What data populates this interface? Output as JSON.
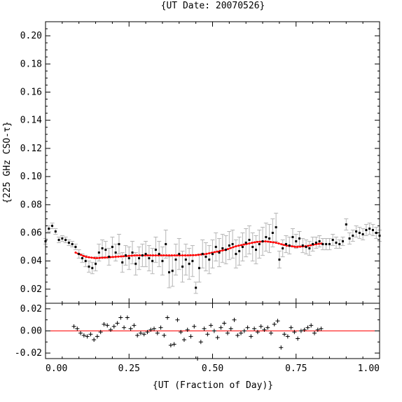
{
  "chart_data": [
    {
      "type": "scatter",
      "panel": "main",
      "title": "{UT Date: 20070526}",
      "xlabel": "",
      "ylabel": "{225 GHz CSO-τ}",
      "xlim": [
        0,
        1
      ],
      "ylim": [
        0.01,
        0.21
      ],
      "yticks": [
        "0.02",
        "0.04",
        "0.06",
        "0.08",
        "0.10",
        "0.12",
        "0.14",
        "0.16",
        "0.18",
        "0.20"
      ],
      "grid": false,
      "colors": {
        "points": "#000000",
        "errorbars": "#b5b5b5",
        "fit": "#ff0000"
      },
      "series": [
        {
          "style": "points-with-errorbars",
          "x": [
            0.0,
            0.01,
            0.02,
            0.03,
            0.04,
            0.05,
            0.06,
            0.07,
            0.08,
            0.09,
            0.1,
            0.11,
            0.12,
            0.13,
            0.14,
            0.15,
            0.16,
            0.17,
            0.18,
            0.19,
            0.2,
            0.21,
            0.22,
            0.23,
            0.24,
            0.25,
            0.26,
            0.27,
            0.28,
            0.29,
            0.3,
            0.31,
            0.32,
            0.33,
            0.34,
            0.35,
            0.36,
            0.37,
            0.38,
            0.39,
            0.4,
            0.41,
            0.42,
            0.43,
            0.44,
            0.45,
            0.46,
            0.47,
            0.48,
            0.49,
            0.5,
            0.51,
            0.52,
            0.53,
            0.54,
            0.55,
            0.56,
            0.57,
            0.58,
            0.59,
            0.6,
            0.61,
            0.62,
            0.63,
            0.64,
            0.65,
            0.66,
            0.67,
            0.68,
            0.69,
            0.7,
            0.71,
            0.72,
            0.73,
            0.74,
            0.75,
            0.76,
            0.77,
            0.78,
            0.79,
            0.8,
            0.81,
            0.82,
            0.83,
            0.84,
            0.85,
            0.86,
            0.87,
            0.88,
            0.89,
            0.9,
            0.91,
            0.92,
            0.93,
            0.94,
            0.95,
            0.96,
            0.97,
            0.98,
            0.99,
            1.0
          ],
          "y": [
            0.054,
            0.063,
            0.065,
            0.061,
            0.055,
            0.056,
            0.055,
            0.053,
            0.052,
            0.05,
            0.045,
            0.042,
            0.04,
            0.036,
            0.035,
            0.038,
            0.046,
            0.049,
            0.048,
            0.043,
            0.05,
            0.046,
            0.052,
            0.039,
            0.044,
            0.042,
            0.046,
            0.038,
            0.042,
            0.044,
            0.045,
            0.042,
            0.04,
            0.048,
            0.045,
            0.04,
            0.052,
            0.032,
            0.033,
            0.041,
            0.045,
            0.036,
            0.041,
            0.038,
            0.04,
            0.021,
            0.035,
            0.045,
            0.043,
            0.041,
            0.045,
            0.05,
            0.046,
            0.049,
            0.048,
            0.051,
            0.052,
            0.045,
            0.047,
            0.05,
            0.053,
            0.055,
            0.05,
            0.048,
            0.052,
            0.054,
            0.057,
            0.056,
            0.06,
            0.064,
            0.041,
            0.049,
            0.052,
            0.051,
            0.057,
            0.054,
            0.056,
            0.051,
            0.05,
            0.049,
            0.052,
            0.053,
            0.054,
            0.052,
            0.052,
            0.052,
            0.055,
            0.053,
            0.052,
            0.054,
            0.066,
            0.056,
            0.058,
            0.061,
            0.06,
            0.059,
            0.062,
            0.063,
            0.062,
            0.06,
            0.058
          ],
          "err": [
            0.002,
            0.002,
            0.002,
            0.002,
            0.002,
            0.002,
            0.002,
            0.002,
            0.002,
            0.002,
            0.003,
            0.003,
            0.004,
            0.004,
            0.004,
            0.005,
            0.006,
            0.006,
            0.006,
            0.006,
            0.007,
            0.006,
            0.007,
            0.007,
            0.007,
            0.008,
            0.008,
            0.008,
            0.008,
            0.008,
            0.009,
            0.009,
            0.009,
            0.009,
            0.009,
            0.01,
            0.01,
            0.011,
            0.011,
            0.011,
            0.011,
            0.011,
            0.011,
            0.011,
            0.011,
            0.004,
            0.01,
            0.01,
            0.01,
            0.01,
            0.01,
            0.01,
            0.01,
            0.01,
            0.01,
            0.01,
            0.01,
            0.01,
            0.01,
            0.01,
            0.01,
            0.01,
            0.01,
            0.01,
            0.01,
            0.01,
            0.01,
            0.01,
            0.01,
            0.01,
            0.006,
            0.006,
            0.006,
            0.006,
            0.006,
            0.005,
            0.005,
            0.005,
            0.005,
            0.005,
            0.005,
            0.004,
            0.004,
            0.004,
            0.004,
            0.004,
            0.004,
            0.004,
            0.003,
            0.003,
            0.004,
            0.004,
            0.004,
            0.004,
            0.004,
            0.004,
            0.004,
            0.004,
            0.004,
            0.004,
            0.004
          ]
        },
        {
          "style": "fit-curve",
          "x": [
            0.09,
            0.12,
            0.15,
            0.18,
            0.21,
            0.24,
            0.27,
            0.3,
            0.33,
            0.36,
            0.39,
            0.42,
            0.45,
            0.48,
            0.51,
            0.54,
            0.57,
            0.6,
            0.63,
            0.66,
            0.69,
            0.72,
            0.75,
            0.78,
            0.81,
            0.83
          ],
          "y": [
            0.046,
            0.043,
            0.042,
            0.0425,
            0.043,
            0.0435,
            0.044,
            0.044,
            0.044,
            0.044,
            0.044,
            0.044,
            0.0442,
            0.045,
            0.0465,
            0.048,
            0.0505,
            0.052,
            0.0535,
            0.054,
            0.053,
            0.051,
            0.05,
            0.0505,
            0.052,
            0.0525
          ]
        }
      ]
    },
    {
      "type": "scatter",
      "panel": "residuals",
      "title": "",
      "xlabel": "{UT (Fraction of Day)}",
      "ylabel": "",
      "xlim": [
        0,
        1
      ],
      "ylim": [
        -0.025,
        0.025
      ],
      "xticks": [
        "0.00",
        "0.25",
        "0.50",
        "0.75",
        "1.00"
      ],
      "yticks": [
        "-0.02",
        "0.00",
        "0.02"
      ],
      "zero_line_color": "#ff0000",
      "marker": "+",
      "x": [
        0.085,
        0.095,
        0.105,
        0.115,
        0.125,
        0.135,
        0.145,
        0.155,
        0.165,
        0.175,
        0.185,
        0.195,
        0.205,
        0.215,
        0.225,
        0.235,
        0.245,
        0.255,
        0.265,
        0.275,
        0.285,
        0.295,
        0.305,
        0.315,
        0.325,
        0.335,
        0.345,
        0.355,
        0.365,
        0.375,
        0.385,
        0.395,
        0.405,
        0.415,
        0.425,
        0.435,
        0.445,
        0.455,
        0.465,
        0.475,
        0.485,
        0.495,
        0.505,
        0.515,
        0.525,
        0.535,
        0.545,
        0.555,
        0.565,
        0.575,
        0.585,
        0.595,
        0.605,
        0.615,
        0.625,
        0.635,
        0.645,
        0.655,
        0.665,
        0.675,
        0.685,
        0.695,
        0.705,
        0.715,
        0.725,
        0.735,
        0.745,
        0.755,
        0.765,
        0.775,
        0.785,
        0.795,
        0.805,
        0.815,
        0.825
      ],
      "y": [
        0.004,
        0.002,
        -0.002,
        -0.004,
        -0.005,
        -0.003,
        -0.008,
        -0.005,
        -0.001,
        0.006,
        0.005,
        0.001,
        0.004,
        0.007,
        0.012,
        0.003,
        0.012,
        0.002,
        0.005,
        -0.004,
        -0.002,
        -0.003,
        -0.001,
        0.001,
        0.002,
        -0.002,
        0.003,
        -0.004,
        0.012,
        -0.013,
        -0.012,
        0.01,
        -0.001,
        -0.008,
        0.001,
        -0.005,
        0.004,
        -0.025,
        -0.01,
        0.002,
        -0.003,
        0.005,
        0.0,
        -0.006,
        0.003,
        0.007,
        -0.002,
        0.002,
        0.01,
        -0.004,
        -0.002,
        0.0,
        0.003,
        -0.005,
        0.002,
        -0.001,
        0.004,
        0.001,
        0.003,
        -0.002,
        0.006,
        0.009,
        -0.015,
        -0.003,
        -0.005,
        0.003,
        -0.001,
        -0.007,
        0.0,
        0.001,
        0.003,
        0.005,
        -0.002,
        0.001,
        0.002
      ]
    }
  ]
}
